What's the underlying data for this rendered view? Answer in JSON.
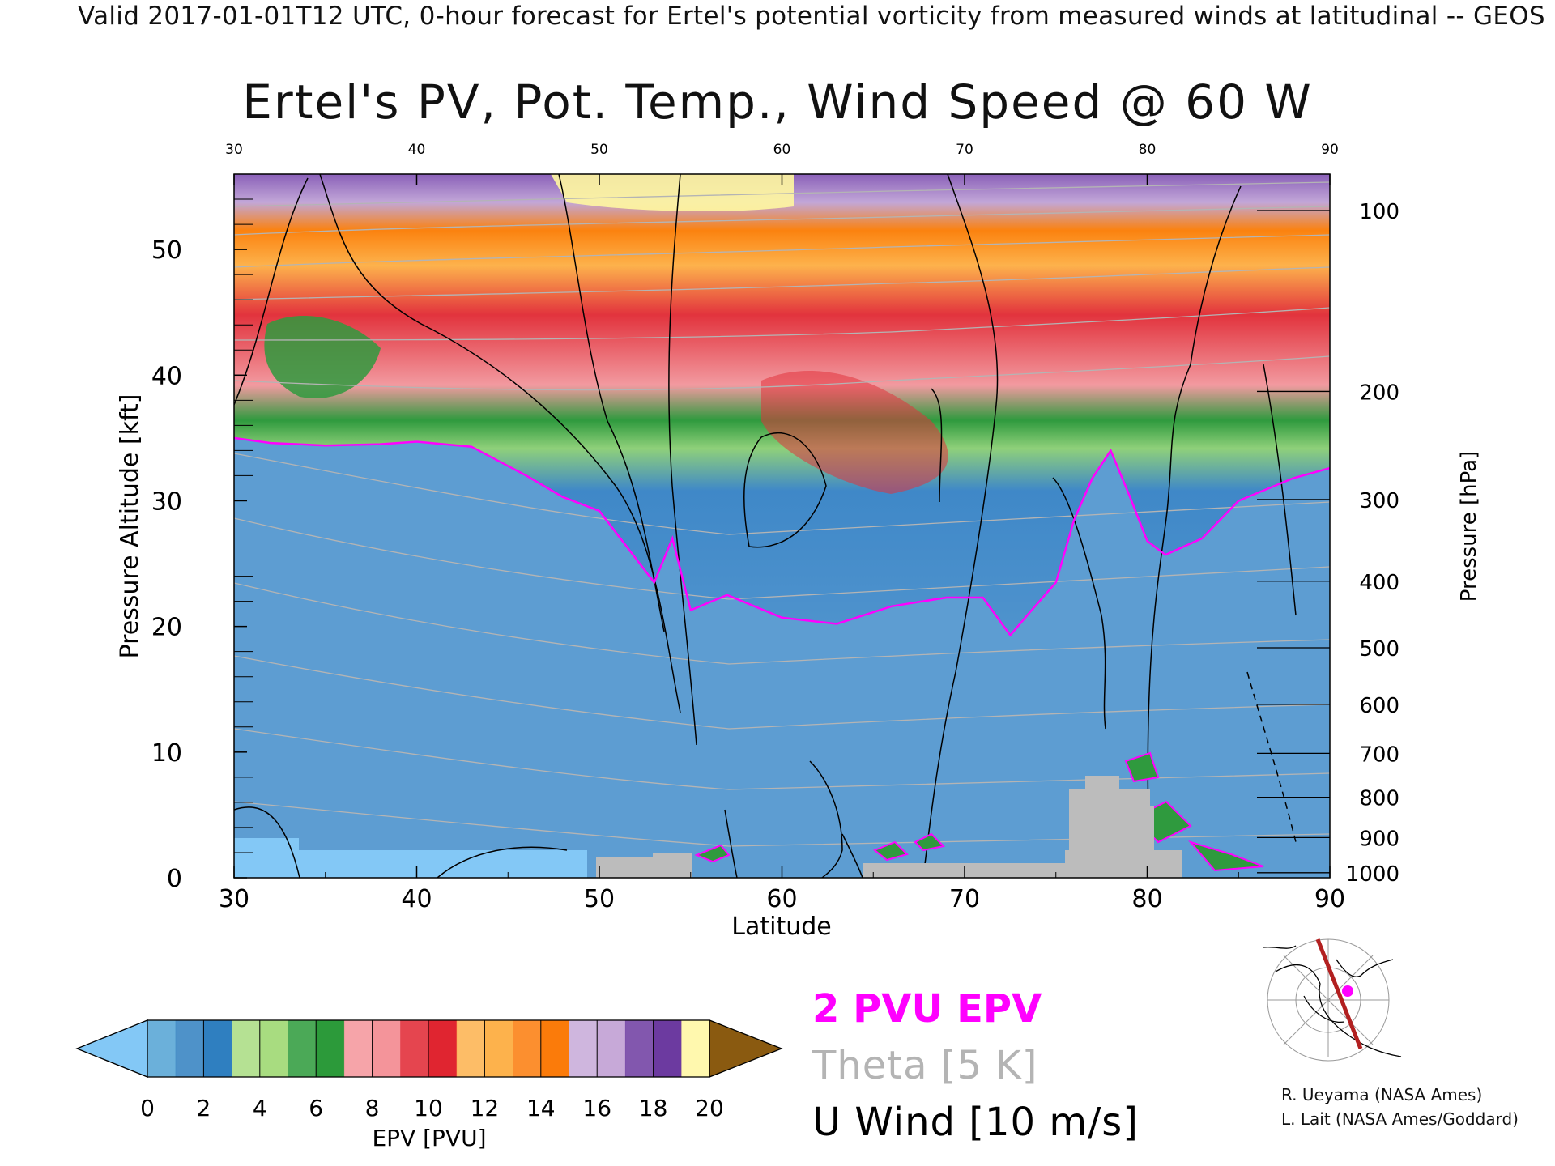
{
  "header": "Valid 2017-01-01T12 UTC, 0-hour forecast for Ertel's potential vorticity from measured winds at latitudinal -- GEOS",
  "chart_data": {
    "type": "heatmap",
    "title": "Ertel's PV, Pot. Temp., Wind Speed @ 60 W",
    "xlabel": "Latitude",
    "ylabel_left": "Pressure Altitude [kft]",
    "ylabel_right": "Pressure [hPa]",
    "xlim": [
      30,
      90
    ],
    "ylim": [
      0,
      56
    ],
    "x_ticks": [
      "30",
      "40",
      "50",
      "60",
      "70",
      "80",
      "90"
    ],
    "y_ticks": [
      "0",
      "10",
      "20",
      "30",
      "40",
      "50"
    ],
    "pressure_ticks": [
      {
        "label": "100",
        "kft": 53.1
      },
      {
        "label": "200",
        "kft": 38.7
      },
      {
        "label": "300",
        "kft": 30.1
      },
      {
        "label": "400",
        "kft": 23.6
      },
      {
        "label": "500",
        "kft": 18.3
      },
      {
        "label": "600",
        "kft": 13.8
      },
      {
        "label": "700",
        "kft": 9.9
      },
      {
        "label": "800",
        "kft": 6.4
      },
      {
        "label": "900",
        "kft": 3.2
      },
      {
        "label": "1000",
        "kft": 0.4
      }
    ],
    "tropopause_2pvu": [
      {
        "lat": 30,
        "kft": 35.0
      },
      {
        "lat": 32,
        "kft": 34.6
      },
      {
        "lat": 35,
        "kft": 34.4
      },
      {
        "lat": 38,
        "kft": 34.5
      },
      {
        "lat": 40,
        "kft": 34.7
      },
      {
        "lat": 43,
        "kft": 34.3
      },
      {
        "lat": 46,
        "kft": 32.0
      },
      {
        "lat": 48,
        "kft": 30.3
      },
      {
        "lat": 50,
        "kft": 29.2
      },
      {
        "lat": 52,
        "kft": 25.4
      },
      {
        "lat": 53,
        "kft": 23.5
      },
      {
        "lat": 54,
        "kft": 27.0
      },
      {
        "lat": 55,
        "kft": 21.3
      },
      {
        "lat": 57,
        "kft": 22.5
      },
      {
        "lat": 60,
        "kft": 20.7
      },
      {
        "lat": 63,
        "kft": 20.2
      },
      {
        "lat": 66,
        "kft": 21.6
      },
      {
        "lat": 69,
        "kft": 22.3
      },
      {
        "lat": 71,
        "kft": 22.3
      },
      {
        "lat": 72.5,
        "kft": 19.3
      },
      {
        "lat": 73.5,
        "kft": 21.0
      },
      {
        "lat": 75,
        "kft": 23.5
      },
      {
        "lat": 76,
        "kft": 28.5
      },
      {
        "lat": 77,
        "kft": 31.8
      },
      {
        "lat": 78,
        "kft": 34.0
      },
      {
        "lat": 79,
        "kft": 30.5
      },
      {
        "lat": 80,
        "kft": 26.8
      },
      {
        "lat": 81,
        "kft": 25.7
      },
      {
        "lat": 83,
        "kft": 27.0
      },
      {
        "lat": 85,
        "kft": 30.0
      },
      {
        "lat": 88,
        "kft": 31.8
      },
      {
        "lat": 90,
        "kft": 32.6
      }
    ],
    "colorbar": {
      "label": "EPV [PVU]",
      "ticks": [
        "0",
        "2",
        "4",
        "6",
        "8",
        "10",
        "12",
        "14",
        "16",
        "18",
        "20"
      ],
      "colors": [
        "#6bb0da",
        "#2f7fc0",
        "#a8dc80",
        "#2c9a3a",
        "#f4949a",
        "#e02530",
        "#fdb24c",
        "#fb7b0a",
        "#c7a9d8",
        "#6c3aa0",
        "#fff7a0",
        "#8a5a10"
      ],
      "under_color": "#83c8f6",
      "over_color": "#8a5a10"
    },
    "legend": {
      "pv_contour": "2 PVU EPV",
      "theta": "Theta [5 K]",
      "u_wind": "U Wind [10 m/s]",
      "pv_color": "#ff00ff",
      "theta_color": "#b4b4b4",
      "u_color": "#000000"
    }
  },
  "credits": [
    "R. Ueyama (NASA Ames)",
    "L. Lait (NASA Ames/Goddard)"
  ]
}
